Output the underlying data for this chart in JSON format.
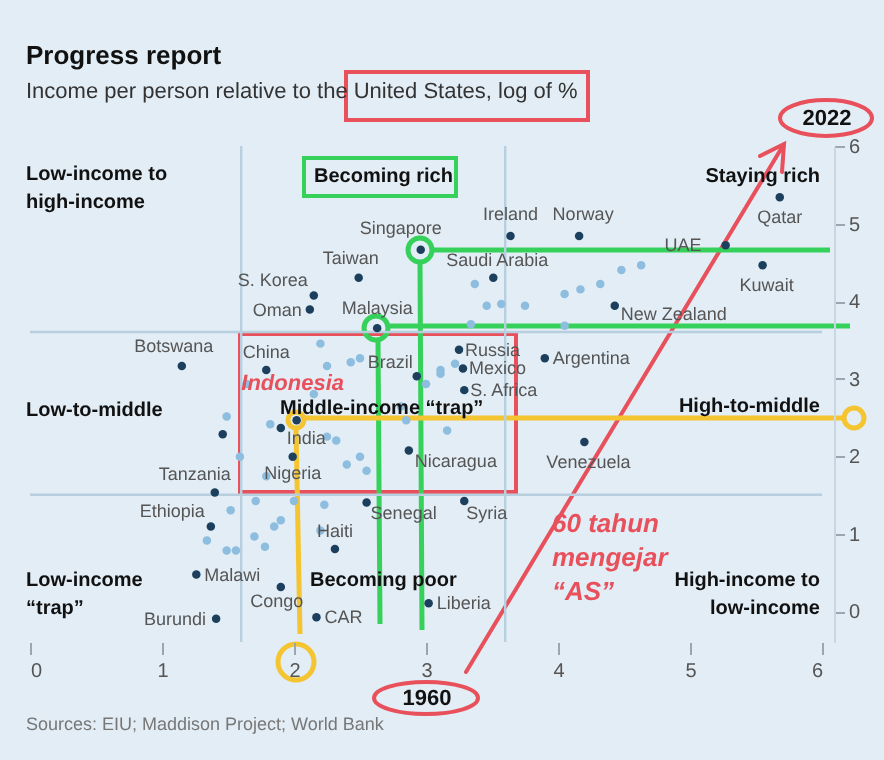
{
  "chart_data": {
    "type": "scatter",
    "title": "Progress report",
    "subtitle": "Income per person relative to the United States, log of %",
    "xlabel": "1960",
    "ylabel": "2022",
    "xlim": [
      0,
      6
    ],
    "ylim": [
      -0.4,
      6
    ],
    "xticks": [
      0,
      1,
      2,
      3,
      4,
      5,
      6
    ],
    "yticks": [
      0,
      1,
      2,
      3,
      4,
      5,
      6
    ],
    "grid": false,
    "legend": false,
    "marker": "circle",
    "series": [
      {
        "color": "#8dbddf",
        "x": [
          2.2,
          2.5,
          2.25,
          2.43,
          1.64,
          1.49,
          1.82,
          2.25,
          1.59,
          1.79,
          2.32,
          2.5,
          2.4,
          2.55,
          2.81,
          2.85,
          3.11,
          3.0,
          2.15,
          3.37,
          3.46,
          3.57,
          3.75,
          4.05,
          4.17,
          4.32,
          4.48,
          4.63,
          4.05,
          3.22,
          3.11,
          3.16,
          3.34,
          1.52,
          1.71,
          2.0,
          1.85,
          1.7,
          1.49,
          1.56,
          1.78,
          1.9,
          2.2,
          1.34,
          2.23
        ],
        "values": [
          3.45,
          3.26,
          3.16,
          3.21,
          2.93,
          2.51,
          2.41,
          2.25,
          1.99,
          1.74,
          2.2,
          1.99,
          1.89,
          1.81,
          2.64,
          2.46,
          3.11,
          2.93,
          2.8,
          4.22,
          3.94,
          3.96,
          3.94,
          4.09,
          4.15,
          4.22,
          4.4,
          4.46,
          3.68,
          3.19,
          3.06,
          2.33,
          3.7,
          1.3,
          1.42,
          1.42,
          1.09,
          0.96,
          0.78,
          0.78,
          0.83,
          1.17,
          1.04,
          0.91,
          1.37
        ]
      },
      {
        "color": "#1d3f5e",
        "x": [
          2.96,
          3.64,
          4.16,
          5.68,
          5.27,
          5.55,
          3.51,
          2.49,
          2.15,
          2.12,
          2.63,
          4.43,
          1.79,
          2.93,
          3.25,
          3.28,
          3.29,
          3.9,
          1.15,
          4.2,
          2.87,
          1.9,
          1.99,
          2.02,
          1.4,
          1.37,
          1.26,
          1.41,
          1.9,
          2.17,
          2.31,
          2.55,
          3.29,
          3.02,
          1.46
        ],
        "values": [
          4.66,
          4.84,
          4.84,
          5.34,
          4.72,
          4.46,
          4.3,
          4.3,
          4.07,
          3.89,
          3.65,
          3.94,
          3.11,
          3.03,
          3.37,
          3.13,
          2.85,
          3.26,
          3.16,
          2.18,
          2.07,
          2.36,
          1.99,
          2.46,
          1.53,
          1.09,
          0.47,
          -0.1,
          0.31,
          -0.08,
          0.8,
          1.4,
          1.42,
          0.1,
          2.28
        ]
      }
    ],
    "ref_lines": [
      {
        "axis": "x",
        "value": 1.6,
        "color": "#b8cfe0"
      },
      {
        "axis": "x",
        "value": 3.6,
        "color": "#b8cfe0"
      },
      {
        "axis": "y",
        "value": 3.6,
        "color": "#b8cfe0"
      },
      {
        "axis": "y",
        "value": 1.5,
        "color": "#b8cfe0"
      }
    ],
    "annotations": [
      "Low-income to\nhigh-income",
      "Becoming rich",
      "Staying rich",
      "Low-to-middle",
      "Middle-income “trap”",
      "High-to-middle",
      "Low-income\n“trap”",
      "Becoming poor",
      "High-income to\nlow-income",
      "Sources: EIU; Maddison Project; World Bank",
      "60 tahun\nmengejar\n“AS”",
      {
        "text": "Singapore",
        "x": 2.96,
        "y": 4.66
      },
      {
        "text": "Ireland",
        "x": 3.64,
        "y": 4.84
      },
      {
        "text": "Norway",
        "x": 4.16,
        "y": 4.84
      },
      {
        "text": "Qatar",
        "x": 5.68,
        "y": 5.34
      },
      {
        "text": "UAE",
        "x": 5.27,
        "y": 4.72
      },
      {
        "text": "Kuwait",
        "x": 5.55,
        "y": 4.46
      },
      {
        "text": "Saudi Arabia",
        "x": 3.51,
        "y": 4.3
      },
      {
        "text": "Taiwan",
        "x": 2.49,
        "y": 4.3
      },
      {
        "text": "S. Korea",
        "x": 2.15,
        "y": 4.07
      },
      {
        "text": "Oman",
        "x": 2.12,
        "y": 3.89
      },
      {
        "text": "Malaysia",
        "x": 2.63,
        "y": 3.65
      },
      {
        "text": "New Zealand",
        "x": 4.43,
        "y": 3.94
      },
      {
        "text": "China",
        "x": 1.79,
        "y": 3.11
      },
      {
        "text": "Brazil",
        "x": 2.93,
        "y": 3.03
      },
      {
        "text": "Russia",
        "x": 3.25,
        "y": 3.37
      },
      {
        "text": "Mexico",
        "x": 3.28,
        "y": 3.13
      },
      {
        "text": "S. Africa",
        "x": 3.29,
        "y": 2.85
      },
      {
        "text": "Argentina",
        "x": 3.9,
        "y": 3.26
      },
      {
        "text": "Botswana",
        "x": 1.15,
        "y": 3.16
      },
      {
        "text": "Venezuela",
        "x": 4.2,
        "y": 2.18
      },
      {
        "text": "Nicaragua",
        "x": 2.87,
        "y": 2.07
      },
      {
        "text": "India",
        "x": 1.9,
        "y": 2.36
      },
      {
        "text": "Nigeria",
        "x": 1.99,
        "y": 1.99
      },
      {
        "text": "Indonesia",
        "x": 2.02,
        "y": 2.46
      },
      {
        "text": "Tanzania",
        "x": 1.4,
        "y": 1.53
      },
      {
        "text": "Ethiopia",
        "x": 1.37,
        "y": 1.09
      },
      {
        "text": "Malawi",
        "x": 1.26,
        "y": 0.47
      },
      {
        "text": "Burundi",
        "x": 1.41,
        "y": -0.1
      },
      {
        "text": "Congo",
        "x": 1.9,
        "y": 0.31
      },
      {
        "text": "CAR",
        "x": 2.17,
        "y": -0.08
      },
      {
        "text": "Haiti",
        "x": 2.31,
        "y": 0.8
      },
      {
        "text": "Senegal",
        "x": 2.55,
        "y": 1.4
      },
      {
        "text": "Syria",
        "x": 3.29,
        "y": 1.42
      },
      {
        "text": "Liberia",
        "x": 3.02,
        "y": 0.1
      }
    ]
  }
}
